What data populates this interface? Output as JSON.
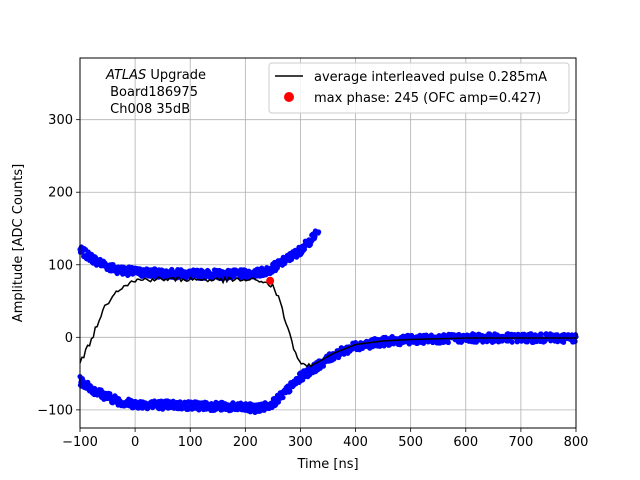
{
  "chart_data": {
    "type": "scatter",
    "xlabel": "Time [ns]",
    "ylabel": "Amplitude [ADC Counts]",
    "xlim": [
      -100,
      800
    ],
    "ylim": [
      -125,
      385
    ],
    "xticks": [
      -100,
      0,
      100,
      200,
      300,
      400,
      500,
      600,
      700,
      800
    ],
    "yticks": [
      -100,
      0,
      100,
      200,
      300
    ],
    "grid": true,
    "legend_position": "top-right",
    "annotation": {
      "experiment": "ATLAS",
      "experiment_suffix": " Upgrade",
      "board": " Board186975",
      "channel": " Ch008 35dB"
    },
    "series": [
      {
        "name": "average interleaved pulse 0.285mA",
        "kind": "line",
        "color": "#000000",
        "x": [
          -100,
          -80,
          -60,
          -40,
          -20,
          0,
          20,
          50,
          100,
          150,
          200,
          230,
          250,
          260,
          270,
          280,
          290,
          300,
          310,
          330,
          360,
          400,
          450,
          500,
          550,
          600,
          700,
          800
        ],
        "y": [
          -35,
          -5,
          35,
          60,
          72,
          78,
          80,
          80,
          80,
          79,
          79,
          78,
          70,
          55,
          30,
          5,
          -20,
          -35,
          -42,
          -35,
          -22,
          -10,
          -5,
          -3,
          -2,
          -1,
          -1,
          -1
        ]
      },
      {
        "name": "max phase: 245 (OFC amp=0.427)",
        "kind": "point",
        "color": "#ff0000",
        "x": [
          245
        ],
        "y": [
          78
        ]
      }
    ],
    "scatter_bands": [
      {
        "color": "#0000ff",
        "x": [
          -100,
          -70,
          -40,
          -20,
          0,
          50,
          100,
          150,
          200,
          220,
          240,
          260,
          280,
          300,
          320,
          333
        ],
        "y": [
          120,
          105,
          95,
          92,
          90,
          88,
          87,
          87,
          87,
          88,
          92,
          100,
          110,
          120,
          135,
          147
        ]
      },
      {
        "color": "#0000ff",
        "x": [
          -100,
          -70,
          -40,
          -20,
          0,
          50,
          100,
          150,
          200,
          220,
          240,
          260,
          280,
          300,
          320,
          340,
          360,
          400,
          450,
          500,
          550,
          600,
          700,
          800
        ],
        "y": [
          -60,
          -75,
          -85,
          -90,
          -92,
          -93,
          -94,
          -95,
          -97,
          -98,
          -95,
          -85,
          -70,
          -55,
          -45,
          -35,
          -25,
          -12,
          -6,
          -3,
          -2,
          -1,
          -1,
          -1
        ]
      }
    ]
  }
}
